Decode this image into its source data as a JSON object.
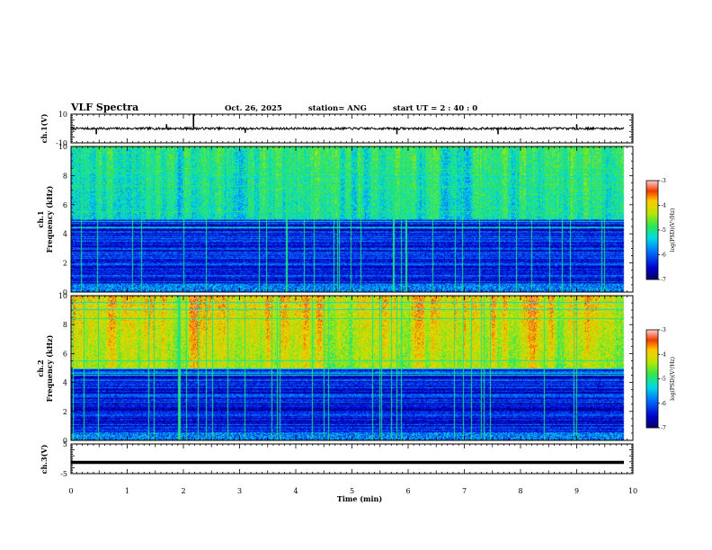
{
  "header": {
    "title": "VLF Spectra",
    "date": "Oct. 26, 2025",
    "station": "station= ANG",
    "start": "start  UT =   2 : 40 : 0"
  },
  "colors": {
    "background": "#ffffff",
    "axes": "#000000",
    "waveform": "#000000"
  },
  "chart_data": [
    {
      "id": "ch1-waveform",
      "type": "line",
      "ylabel": "ch.1(V)",
      "ylim": [
        -10,
        10
      ],
      "yticks": [
        10,
        -10
      ],
      "xlim": [
        0,
        10
      ],
      "baseline": 0,
      "noise_amplitude": 0.8,
      "spikes": [
        {
          "t": 0.45,
          "v": -4
        },
        {
          "t": 1.7,
          "v": 3
        },
        {
          "t": 2.18,
          "v": 10
        },
        {
          "t": 3.1,
          "v": -3
        },
        {
          "t": 5.8,
          "v": -4
        },
        {
          "t": 7.6,
          "v": -4
        },
        {
          "t": 9.0,
          "v": 3
        }
      ]
    },
    {
      "id": "ch1-spectrogram",
      "type": "heatmap",
      "ylabel_top": "ch.1",
      "ylabel": "Frequency  (kHz)",
      "ylim": [
        0,
        10
      ],
      "yticks": [
        0,
        2,
        4,
        6,
        8,
        10
      ],
      "xlim": [
        0,
        10
      ],
      "colorbar": {
        "label": "log(PSD)(V²/Hz)",
        "range": [
          -7,
          -3
        ],
        "ticks": [
          "-3",
          "-4",
          "-5",
          "-6",
          "-7"
        ]
      },
      "intensity": 0.3,
      "seed": 11
    },
    {
      "id": "ch2-spectrogram",
      "type": "heatmap",
      "ylabel_top": "ch.2",
      "ylabel": "Frequency  (kHz)",
      "ylim": [
        0,
        10
      ],
      "yticks": [
        0,
        2,
        4,
        6,
        8,
        10
      ],
      "xlim": [
        0,
        10
      ],
      "colorbar": {
        "label": "log(PSD)(V²/Hz)",
        "range": [
          -7,
          -3
        ],
        "ticks": [
          "-3",
          "-4",
          "-5",
          "-6",
          "-7"
        ]
      },
      "intensity": 0.75,
      "seed": 29
    },
    {
      "id": "ch3-waveform",
      "type": "line",
      "ylabel": "ch.3(V)",
      "ylim": [
        -5,
        5
      ],
      "yticks": [
        5,
        -5
      ],
      "xlim": [
        0,
        10
      ],
      "baseline": -1.2,
      "noise_amplitude": 0,
      "spikes": []
    }
  ],
  "xaxis": {
    "label": "Time  (min)",
    "ticks": [
      "0",
      "1",
      "2",
      "3",
      "4",
      "5",
      "6",
      "7",
      "8",
      "9",
      "10"
    ]
  }
}
